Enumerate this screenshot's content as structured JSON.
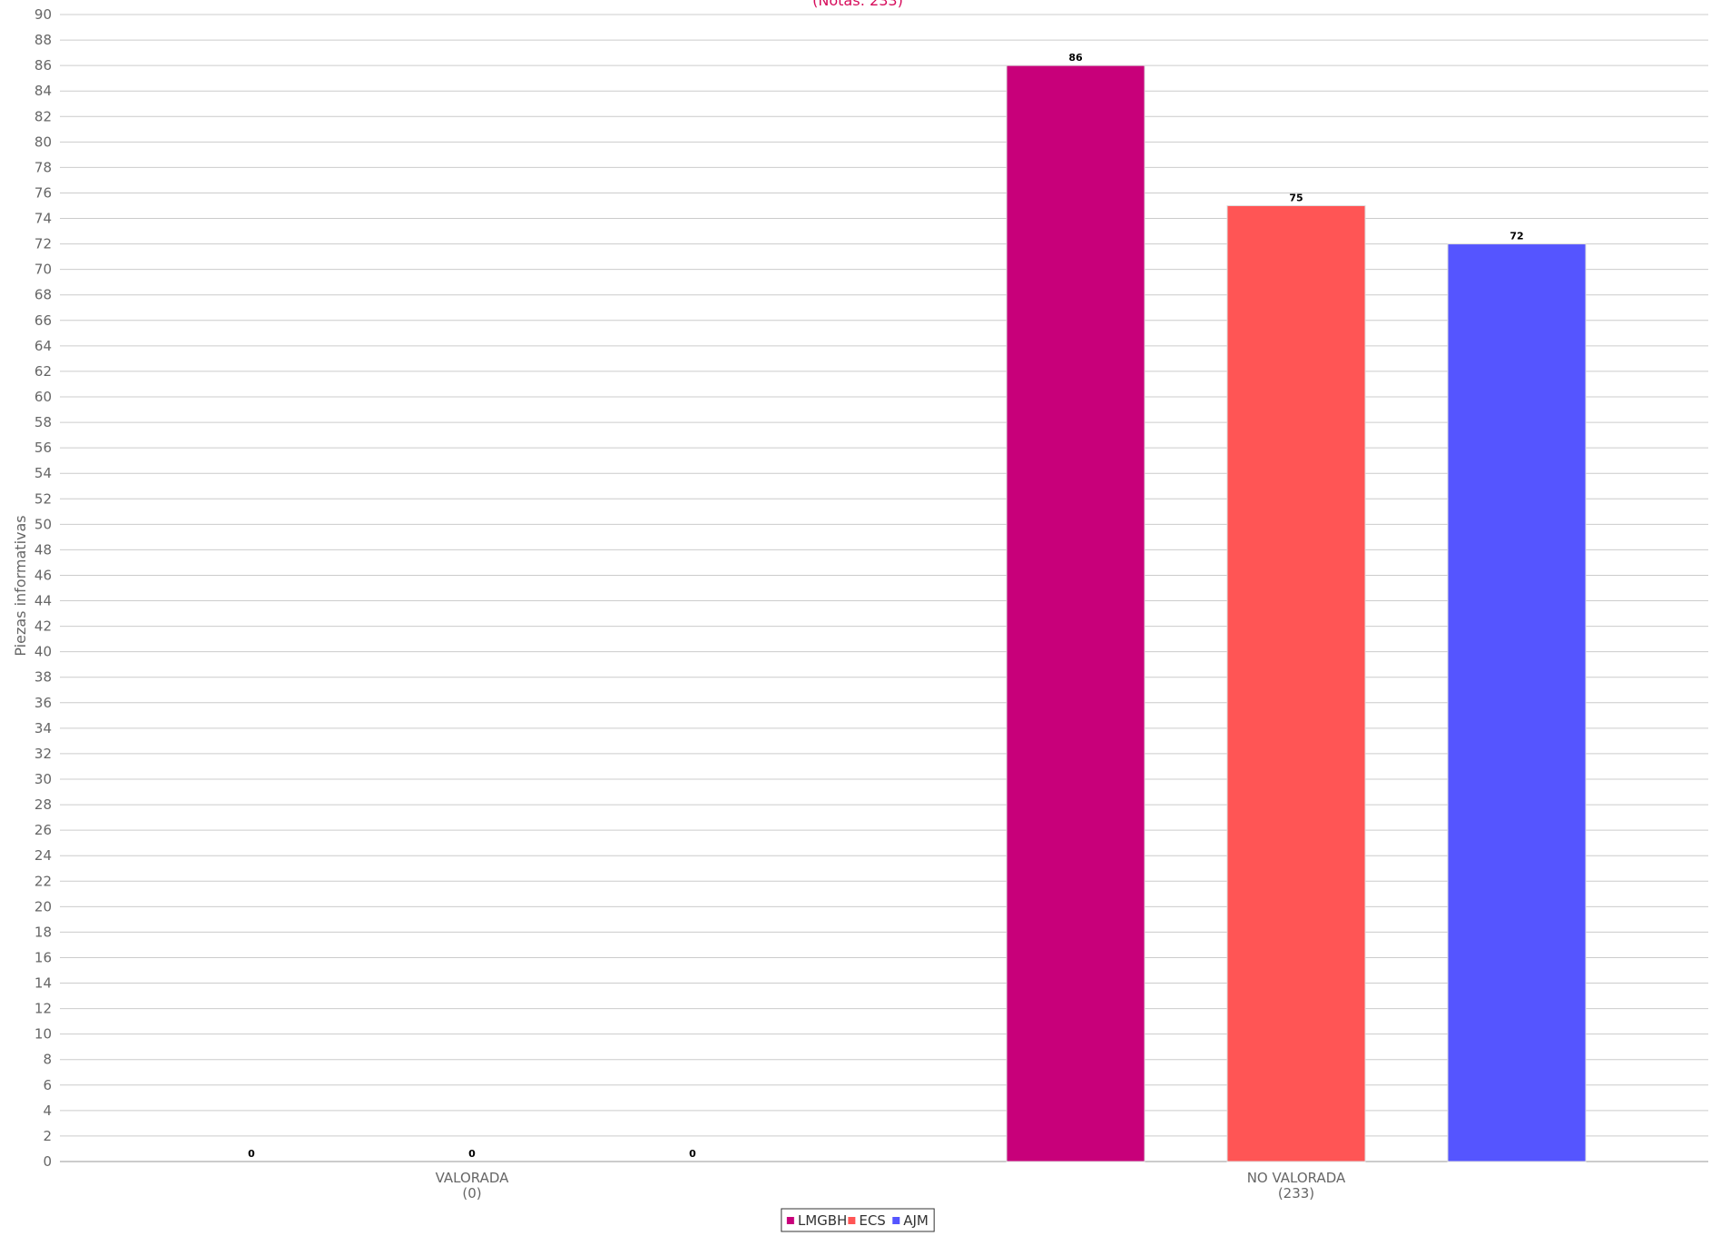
{
  "chart_data": {
    "type": "bar",
    "title_partial": "(Notas: 233)",
    "ylabel": "Piezas informativas",
    "xlabel": "",
    "ylim": [
      0,
      90
    ],
    "ytick_step": 2,
    "grid": true,
    "legend_position": "bottom-center",
    "categories": [
      {
        "name": "VALORADA",
        "sub": "(0)"
      },
      {
        "name": "NO VALORADA",
        "sub": "(233)"
      }
    ],
    "series": [
      {
        "name": "LMGBH",
        "color": "#c8007a",
        "values": [
          0,
          86
        ]
      },
      {
        "name": "ECS",
        "color": "#ff5555",
        "values": [
          0,
          75
        ]
      },
      {
        "name": "AJM",
        "color": "#5555ff",
        "values": [
          0,
          72
        ]
      }
    ]
  }
}
